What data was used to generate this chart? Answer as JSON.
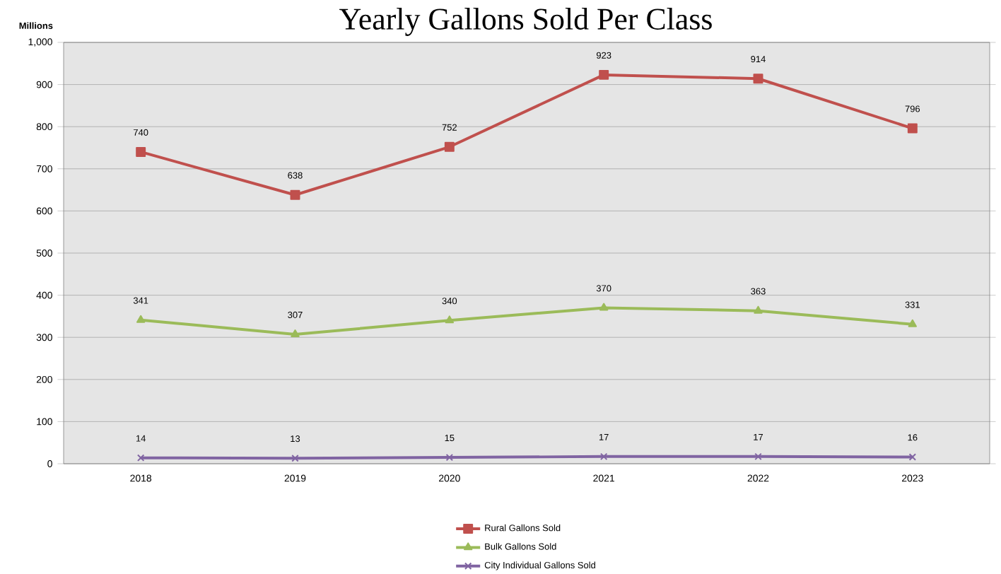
{
  "chart_data": {
    "type": "line",
    "title": "Yearly Gallons Sold Per Class",
    "ylabel": "Millions",
    "categories": [
      "2018",
      "2019",
      "2020",
      "2021",
      "2022",
      "2023"
    ],
    "series": [
      {
        "name": "Rural Gallons Sold",
        "color": "#c0504d",
        "marker": "square",
        "values": [
          740,
          638,
          752,
          923,
          914,
          796
        ]
      },
      {
        "name": "Bulk Gallons Sold",
        "color": "#9bbb59",
        "marker": "triangle",
        "values": [
          341,
          307,
          340,
          370,
          363,
          331
        ]
      },
      {
        "name": "City Individual Gallons Sold",
        "color": "#8064a2",
        "marker": "cross",
        "values": [
          14,
          13,
          15,
          17,
          17,
          16
        ]
      }
    ],
    "ylim": [
      0,
      1000
    ],
    "yticks": [
      0,
      100,
      200,
      300,
      400,
      500,
      600,
      700,
      800,
      900,
      {
        "value": 1000,
        "label": "1,000"
      }
    ],
    "grid": "y",
    "legend": "bottom",
    "data_labels": true,
    "line_style": "solid"
  }
}
